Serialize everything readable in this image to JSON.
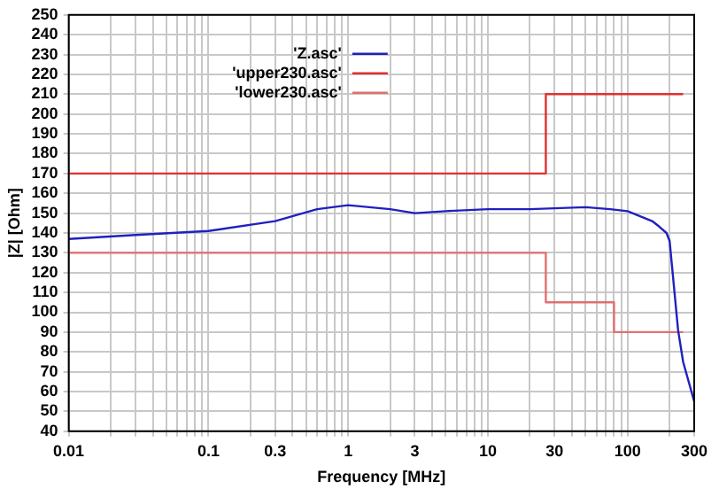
{
  "chart_data": {
    "type": "line",
    "xlabel": "Frequency [MHz]",
    "ylabel": "|Z| [Ohm]",
    "log": "x",
    "grid": true,
    "legend": "top",
    "line_style": "solid",
    "marker": "none",
    "xlim": [
      0.01,
      300
    ],
    "ylim": [
      40,
      250
    ],
    "xticks": [
      0.01,
      {
        "value": 0.02,
        "label": null
      },
      {
        "value": 0.03,
        "label": null
      },
      {
        "value": 0.04,
        "label": null
      },
      {
        "value": 0.05,
        "label": null
      },
      {
        "value": 0.06,
        "label": null
      },
      {
        "value": 0.07,
        "label": null
      },
      {
        "value": 0.08,
        "label": null
      },
      {
        "value": 0.09,
        "label": null
      },
      0.1,
      {
        "value": 0.2,
        "label": null
      },
      0.3,
      {
        "value": 0.4,
        "label": null
      },
      {
        "value": 0.5,
        "label": null
      },
      {
        "value": 0.6,
        "label": null
      },
      {
        "value": 0.7,
        "label": null
      },
      {
        "value": 0.8,
        "label": null
      },
      {
        "value": 0.9,
        "label": null
      },
      1,
      {
        "value": 2,
        "label": null
      },
      3,
      {
        "value": 4,
        "label": null
      },
      {
        "value": 5,
        "label": null
      },
      {
        "value": 6,
        "label": null
      },
      {
        "value": 7,
        "label": null
      },
      {
        "value": 8,
        "label": null
      },
      {
        "value": 9,
        "label": null
      },
      10,
      {
        "value": 20,
        "label": null
      },
      30,
      {
        "value": 40,
        "label": null
      },
      {
        "value": 50,
        "label": null
      },
      {
        "value": 60,
        "label": null
      },
      {
        "value": 70,
        "label": null
      },
      {
        "value": 80,
        "label": null
      },
      {
        "value": 90,
        "label": null
      },
      100,
      {
        "value": 200,
        "label": null
      },
      300
    ],
    "yticks": [
      40,
      50,
      60,
      70,
      80,
      90,
      100,
      110,
      120,
      130,
      140,
      150,
      160,
      170,
      180,
      190,
      200,
      210,
      220,
      230,
      240,
      250
    ],
    "series": [
      {
        "name": "'Z.asc'",
        "color": "#2020c0",
        "type": "line",
        "x": [
          0.01,
          0.03,
          0.1,
          0.3,
          0.6,
          1,
          2,
          3,
          5,
          10,
          20,
          50,
          75,
          100,
          150,
          170,
          190,
          200,
          230,
          250,
          300
        ],
        "values": [
          137,
          139,
          141,
          146,
          152,
          154,
          152,
          150,
          151,
          152,
          152,
          153,
          152,
          151,
          146,
          143,
          140,
          136,
          91,
          75,
          55
        ]
      },
      {
        "name": "'upper230.asc'",
        "color": "#e03030",
        "type": "step",
        "x": [
          0.01,
          26,
          250
        ],
        "values": [
          170,
          210,
          210
        ]
      },
      {
        "name": "'lower230.asc'",
        "color": "#e07070",
        "type": "step",
        "x": [
          0.01,
          26,
          80,
          250
        ],
        "values": [
          130,
          105,
          90,
          90
        ]
      }
    ]
  }
}
